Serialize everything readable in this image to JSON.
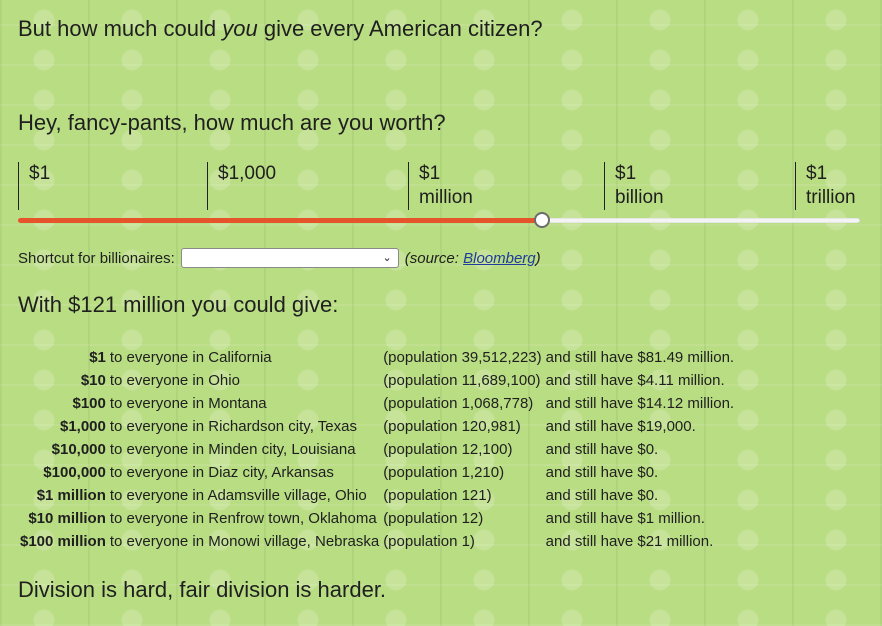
{
  "header": {
    "question_prefix": "But how much could ",
    "question_emphasis": "you",
    "question_suffix": " give every American citizen?"
  },
  "worth_prompt": "Hey, fancy-pants, how much are you worth?",
  "slider": {
    "ticks": [
      {
        "line1": "$1",
        "line2": ""
      },
      {
        "line1": "$1,000",
        "line2": ""
      },
      {
        "line1": "$1",
        "line2": "million"
      },
      {
        "line1": "$1",
        "line2": "billion"
      },
      {
        "line1": "$1",
        "line2": "trillion"
      }
    ],
    "value_fraction": 0.623
  },
  "shortcut": {
    "label": "Shortcut for billionaires:",
    "selected": "",
    "source_prefix": "(source: ",
    "source_link": "Bloomberg",
    "source_suffix": ")"
  },
  "result_heading": "With $121 million you could give:",
  "rows": [
    {
      "amount": "$1",
      "place": "to everyone in California",
      "population": "(population 39,512,223)",
      "remaining": "and still have $81.49 million."
    },
    {
      "amount": "$10",
      "place": "to everyone in Ohio",
      "population": "(population 11,689,100)",
      "remaining": "and still have $4.11 million."
    },
    {
      "amount": "$100",
      "place": "to everyone in Montana",
      "population": "(population 1,068,778)",
      "remaining": "and still have $14.12 million."
    },
    {
      "amount": "$1,000",
      "place": "to everyone in Richardson city, Texas",
      "population": "(population 120,981)",
      "remaining": "and still have $19,000."
    },
    {
      "amount": "$10,000",
      "place": "to everyone in Minden city, Louisiana",
      "population": "(population 12,100)",
      "remaining": "and still have $0."
    },
    {
      "amount": "$100,000",
      "place": "to everyone in Diaz city, Arkansas",
      "population": "(population 1,210)",
      "remaining": "and still have $0."
    },
    {
      "amount": "$1 million",
      "place": "to everyone in Adamsville village, Ohio",
      "population": "(population 121)",
      "remaining": "and still have $0."
    },
    {
      "amount": "$10 million",
      "place": "to everyone in Renfrow town, Oklahoma",
      "population": "(population 12)",
      "remaining": "and still have $1 million."
    },
    {
      "amount": "$100 million",
      "place": "to everyone in Monowi village, Nebraska",
      "population": "(population 1)",
      "remaining": "and still have $21 million."
    }
  ],
  "footer_heading": "Division is hard, fair division is harder.",
  "colors": {
    "slider_fill": "#e5542b",
    "background": "#b9dd83",
    "link": "#1f3b9c"
  }
}
